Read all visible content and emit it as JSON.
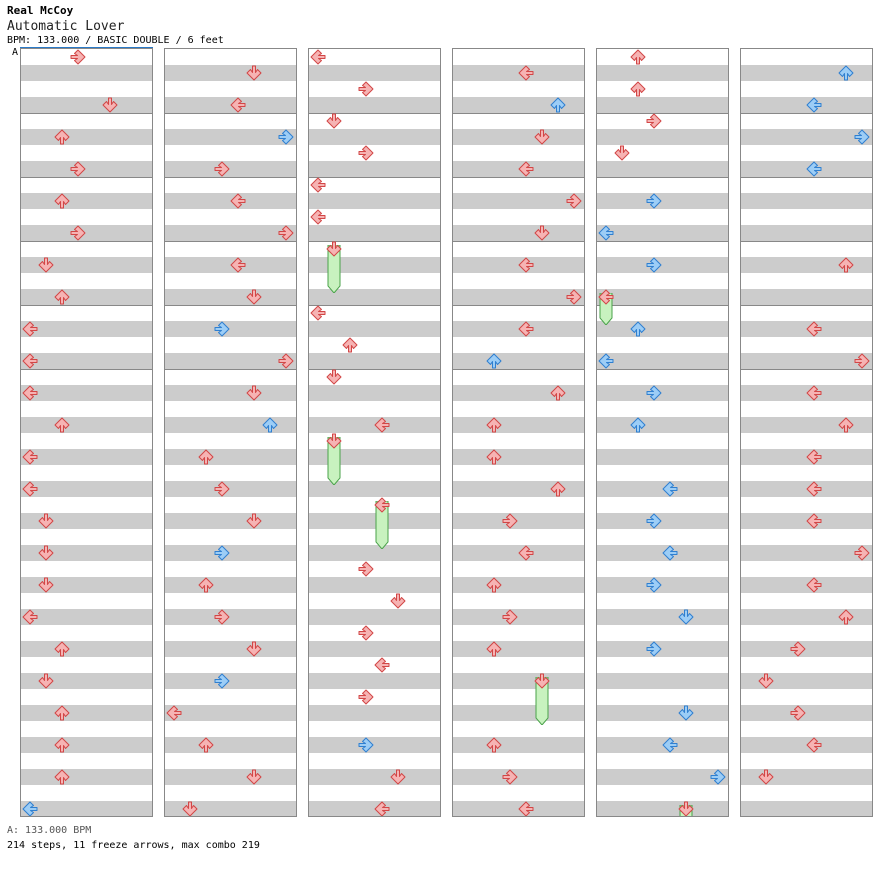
{
  "header": {
    "artist": "Real McCoy",
    "title": "Automatic Lover",
    "meta": "BPM: 133.000 / BASIC DOUBLE / 6 feet",
    "bpm_marker": "A"
  },
  "footer": {
    "bpm_line": "A: 133.000 BPM",
    "stats_line": "214 steps, 11 freeze arrows, max combo 219"
  },
  "colors": {
    "red_fill": "#f6b3b3",
    "red_stroke": "#d24646",
    "blue_fill": "#9ccdf6",
    "blue_stroke": "#2f7fd0",
    "green_fill": "#c8f2bf",
    "green_stroke": "#4aa24a",
    "band": "#cccccc",
    "border": "#888888"
  },
  "chart_data": {
    "type": "step-chart",
    "lanes": [
      "left-1",
      "down-1",
      "up-1",
      "right-1",
      "left-2",
      "down-2",
      "up-2",
      "right-2"
    ],
    "beats_per_column": 24,
    "columns": 6,
    "notes": [
      {
        "beat": 0,
        "lane": 3
      },
      {
        "beat": 1.5,
        "lane": 5
      },
      {
        "beat": 2.5,
        "lane": 2
      },
      {
        "beat": 3.5,
        "lane": 3
      },
      {
        "beat": 4.5,
        "lane": 2
      },
      {
        "beat": 5.5,
        "lane": 3
      },
      {
        "beat": 6.5,
        "lane": 1
      },
      {
        "beat": 7.5,
        "lane": 2
      },
      {
        "beat": 8.5,
        "lane": 0
      },
      {
        "beat": 9.5,
        "lane": 0
      },
      {
        "beat": 10.5,
        "lane": 0
      },
      {
        "beat": 11.5,
        "lane": 2
      },
      {
        "beat": 12.5,
        "lane": 0
      },
      {
        "beat": 13.5,
        "lane": 0
      },
      {
        "beat": 14.5,
        "lane": 1
      },
      {
        "beat": 15.5,
        "lane": 1
      },
      {
        "beat": 16.5,
        "lane": 1
      },
      {
        "beat": 17.5,
        "lane": 0
      },
      {
        "beat": 18.5,
        "lane": 2
      },
      {
        "beat": 19.5,
        "lane": 1
      },
      {
        "beat": 20.5,
        "lane": 2
      },
      {
        "beat": 21.5,
        "lane": 2
      },
      {
        "beat": 22.5,
        "lane": 2
      },
      {
        "beat": 23.5,
        "lane": 0,
        "color": "blue"
      },
      {
        "beat": 24.5,
        "lane": 5
      },
      {
        "beat": 25.5,
        "lane": 4
      },
      {
        "beat": 26.5,
        "lane": 7,
        "color": "blue"
      },
      {
        "beat": 27.5,
        "lane": 3
      },
      {
        "beat": 28.5,
        "lane": 4
      },
      {
        "beat": 29.5,
        "lane": 7
      },
      {
        "beat": 30.5,
        "lane": 4
      },
      {
        "beat": 31.5,
        "lane": 5
      },
      {
        "beat": 32.5,
        "lane": 3,
        "color": "blue"
      },
      {
        "beat": 33.5,
        "lane": 7
      },
      {
        "beat": 34.5,
        "lane": 5
      },
      {
        "beat": 35.5,
        "lane": 6,
        "color": "blue"
      },
      {
        "beat": 36.5,
        "lane": 2
      },
      {
        "beat": 37.5,
        "lane": 3
      },
      {
        "beat": 38.5,
        "lane": 5
      },
      {
        "beat": 39.5,
        "lane": 3,
        "color": "blue"
      },
      {
        "beat": 40.5,
        "lane": 2
      },
      {
        "beat": 41.5,
        "lane": 3
      },
      {
        "beat": 42.5,
        "lane": 5
      },
      {
        "beat": 43.5,
        "lane": 3,
        "color": "blue"
      },
      {
        "beat": 44.5,
        "lane": 0
      },
      {
        "beat": 45.5,
        "lane": 2
      },
      {
        "beat": 46.5,
        "lane": 5
      },
      {
        "beat": 47.5,
        "lane": 1
      },
      {
        "beat": 48,
        "lane": 0
      },
      {
        "beat": 49,
        "lane": 3
      },
      {
        "beat": 50,
        "lane": 1
      },
      {
        "beat": 51,
        "lane": 3
      },
      {
        "beat": 52,
        "lane": 0
      },
      {
        "beat": 53,
        "lane": 0
      },
      {
        "beat": 54,
        "lane": 1,
        "freeze": 1.5
      },
      {
        "beat": 56,
        "lane": 0
      },
      {
        "beat": 57,
        "lane": 2
      },
      {
        "beat": 58,
        "lane": 1
      },
      {
        "beat": 59.5,
        "lane": 4
      },
      {
        "beat": 60,
        "lane": 1,
        "freeze": 1.5
      },
      {
        "beat": 62,
        "lane": 4,
        "freeze": 1.5
      },
      {
        "beat": 64,
        "lane": 3
      },
      {
        "beat": 65,
        "lane": 5
      },
      {
        "beat": 66,
        "lane": 3
      },
      {
        "beat": 67,
        "lane": 4
      },
      {
        "beat": 68,
        "lane": 3
      },
      {
        "beat": 69.5,
        "lane": 3,
        "color": "blue"
      },
      {
        "beat": 70.5,
        "lane": 5
      },
      {
        "beat": 71.5,
        "lane": 4
      },
      {
        "beat": 72.5,
        "lane": 4
      },
      {
        "beat": 73.5,
        "lane": 6,
        "color": "blue"
      },
      {
        "beat": 74.5,
        "lane": 5
      },
      {
        "beat": 75.5,
        "lane": 4
      },
      {
        "beat": 76.5,
        "lane": 7
      },
      {
        "beat": 77.5,
        "lane": 5
      },
      {
        "beat": 78.5,
        "lane": 4
      },
      {
        "beat": 79.5,
        "lane": 7
      },
      {
        "beat": 80.5,
        "lane": 4
      },
      {
        "beat": 81.5,
        "lane": 2,
        "color": "blue"
      },
      {
        "beat": 82.5,
        "lane": 6
      },
      {
        "beat": 83.5,
        "lane": 2
      },
      {
        "beat": 84.5,
        "lane": 2
      },
      {
        "beat": 85.5,
        "lane": 6
      },
      {
        "beat": 86.5,
        "lane": 3
      },
      {
        "beat": 87.5,
        "lane": 4
      },
      {
        "beat": 88.5,
        "lane": 2
      },
      {
        "beat": 89.5,
        "lane": 3
      },
      {
        "beat": 90.5,
        "lane": 2
      },
      {
        "beat": 91.5,
        "lane": 5,
        "freeze": 1.5
      },
      {
        "beat": 93.5,
        "lane": 2
      },
      {
        "beat": 94.5,
        "lane": 3
      },
      {
        "beat": 95.5,
        "lane": 4
      },
      {
        "beat": 96,
        "lane": 2
      },
      {
        "beat": 97,
        "lane": 2
      },
      {
        "beat": 98,
        "lane": 3
      },
      {
        "beat": 99,
        "lane": 1
      },
      {
        "beat": 100.5,
        "lane": 3,
        "color": "blue"
      },
      {
        "beat": 101.5,
        "lane": 0,
        "color": "blue"
      },
      {
        "beat": 102.5,
        "lane": 3,
        "color": "blue"
      },
      {
        "beat": 103.5,
        "lane": 0,
        "freeze": 1
      },
      {
        "beat": 104.5,
        "lane": 2,
        "color": "blue"
      },
      {
        "beat": 105.5,
        "lane": 0,
        "color": "blue"
      },
      {
        "beat": 106.5,
        "lane": 3,
        "color": "blue"
      },
      {
        "beat": 107.5,
        "lane": 2,
        "color": "blue"
      },
      {
        "beat": 109.5,
        "lane": 4,
        "color": "blue"
      },
      {
        "beat": 110.5,
        "lane": 3,
        "color": "blue"
      },
      {
        "beat": 111.5,
        "lane": 4,
        "color": "blue"
      },
      {
        "beat": 112.5,
        "lane": 3,
        "color": "blue"
      },
      {
        "beat": 113.5,
        "lane": 5,
        "color": "blue"
      },
      {
        "beat": 114.5,
        "lane": 3,
        "color": "blue"
      },
      {
        "beat": 116.5,
        "lane": 5,
        "color": "blue"
      },
      {
        "beat": 117.5,
        "lane": 4,
        "color": "blue"
      },
      {
        "beat": 118.5,
        "lane": 7,
        "color": "blue"
      },
      {
        "beat": 119.5,
        "lane": 5,
        "freeze": 1.5
      },
      {
        "beat": 120.5,
        "lane": 6,
        "color": "blue"
      },
      {
        "beat": 121.5,
        "lane": 4,
        "color": "blue"
      },
      {
        "beat": 122.5,
        "lane": 7,
        "color": "blue"
      },
      {
        "beat": 123.5,
        "lane": 4,
        "color": "blue"
      },
      {
        "beat": 126.5,
        "lane": 6
      },
      {
        "beat": 128.5,
        "lane": 4
      },
      {
        "beat": 129.5,
        "lane": 7
      },
      {
        "beat": 130.5,
        "lane": 4
      },
      {
        "beat": 131.5,
        "lane": 6
      },
      {
        "beat": 132.5,
        "lane": 4
      },
      {
        "beat": 133.5,
        "lane": 4
      },
      {
        "beat": 134.5,
        "lane": 4
      },
      {
        "beat": 135.5,
        "lane": 7
      },
      {
        "beat": 136.5,
        "lane": 4
      },
      {
        "beat": 137.5,
        "lane": 6
      },
      {
        "beat": 138.5,
        "lane": 3
      },
      {
        "beat": 139.5,
        "lane": 1
      },
      {
        "beat": 140.5,
        "lane": 3
      },
      {
        "beat": 141.5,
        "lane": 4
      },
      {
        "beat": 142.5,
        "lane": 1
      }
    ]
  }
}
